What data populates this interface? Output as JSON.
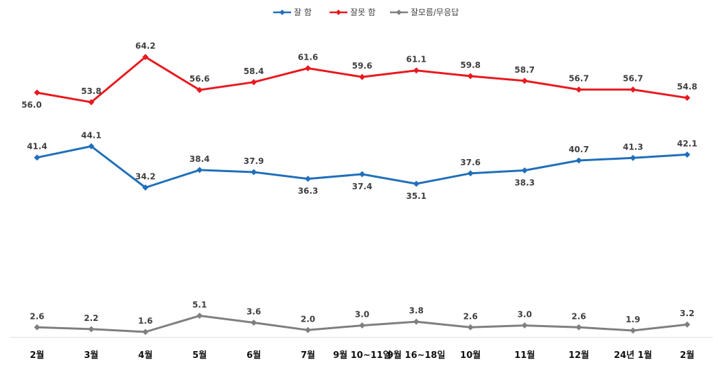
{
  "chart_data": {
    "type": "line",
    "categories": [
      "2월",
      "3월",
      "4월",
      "5월",
      "6월",
      "7월",
      "9월 10~11일",
      "9월 16~18일",
      "10월",
      "11월",
      "12월",
      "24년 1월",
      "2월"
    ],
    "series": [
      {
        "name": "잘 함",
        "color": "#1f6fba",
        "values": [
          41.4,
          44.1,
          34.2,
          38.4,
          37.9,
          36.3,
          37.4,
          35.1,
          37.6,
          38.3,
          40.7,
          41.3,
          42.1
        ],
        "labels": [
          "41.4",
          "44.1",
          "34.2",
          "38.4",
          "37.9",
          "36.3",
          "37.4",
          "35.1",
          "37.6",
          "38.3",
          "40.7",
          "41.3",
          "42.1"
        ]
      },
      {
        "name": "잘못 함",
        "color": "#e8191f",
        "values": [
          56.0,
          53.8,
          64.2,
          56.6,
          58.4,
          61.6,
          59.6,
          61.1,
          59.8,
          58.7,
          56.7,
          56.7,
          54.8
        ],
        "labels": [
          "56.0",
          "53.8",
          "64.2",
          "56.6",
          "58.4",
          "61.6",
          "59.6",
          "61.1",
          "59.8",
          "58.7",
          "56.7",
          "56.7",
          "54.8"
        ]
      },
      {
        "name": "잘모름/무응답",
        "color": "#7f7f7f",
        "values": [
          2.6,
          2.2,
          1.6,
          5.1,
          3.6,
          2.0,
          3.0,
          3.8,
          2.6,
          3.0,
          2.6,
          1.9,
          3.2
        ],
        "labels": [
          "2.6",
          "2.2",
          "1.6",
          "5.1",
          "3.6",
          "2.0",
          "3.0",
          "3.8",
          "2.6",
          "3.0",
          "2.6",
          "1.9",
          "3.2"
        ]
      }
    ],
    "ylim": [
      0,
      70
    ],
    "grid": false,
    "legend_position": "top-center",
    "data_labels": true,
    "label_positions": {
      "잘 함": [
        "above",
        "above",
        "above",
        "above",
        "above",
        "below",
        "below",
        "below",
        "above",
        "below",
        "above",
        "above",
        "above"
      ],
      "잘못 함": [
        "below",
        "above",
        "above",
        "above",
        "above",
        "above",
        "above",
        "above",
        "above",
        "above",
        "above",
        "above",
        "above"
      ],
      "잘모름/무응답": [
        "above",
        "above",
        "above",
        "above",
        "above",
        "above",
        "above",
        "above",
        "above",
        "above",
        "above",
        "above",
        "above"
      ]
    }
  }
}
